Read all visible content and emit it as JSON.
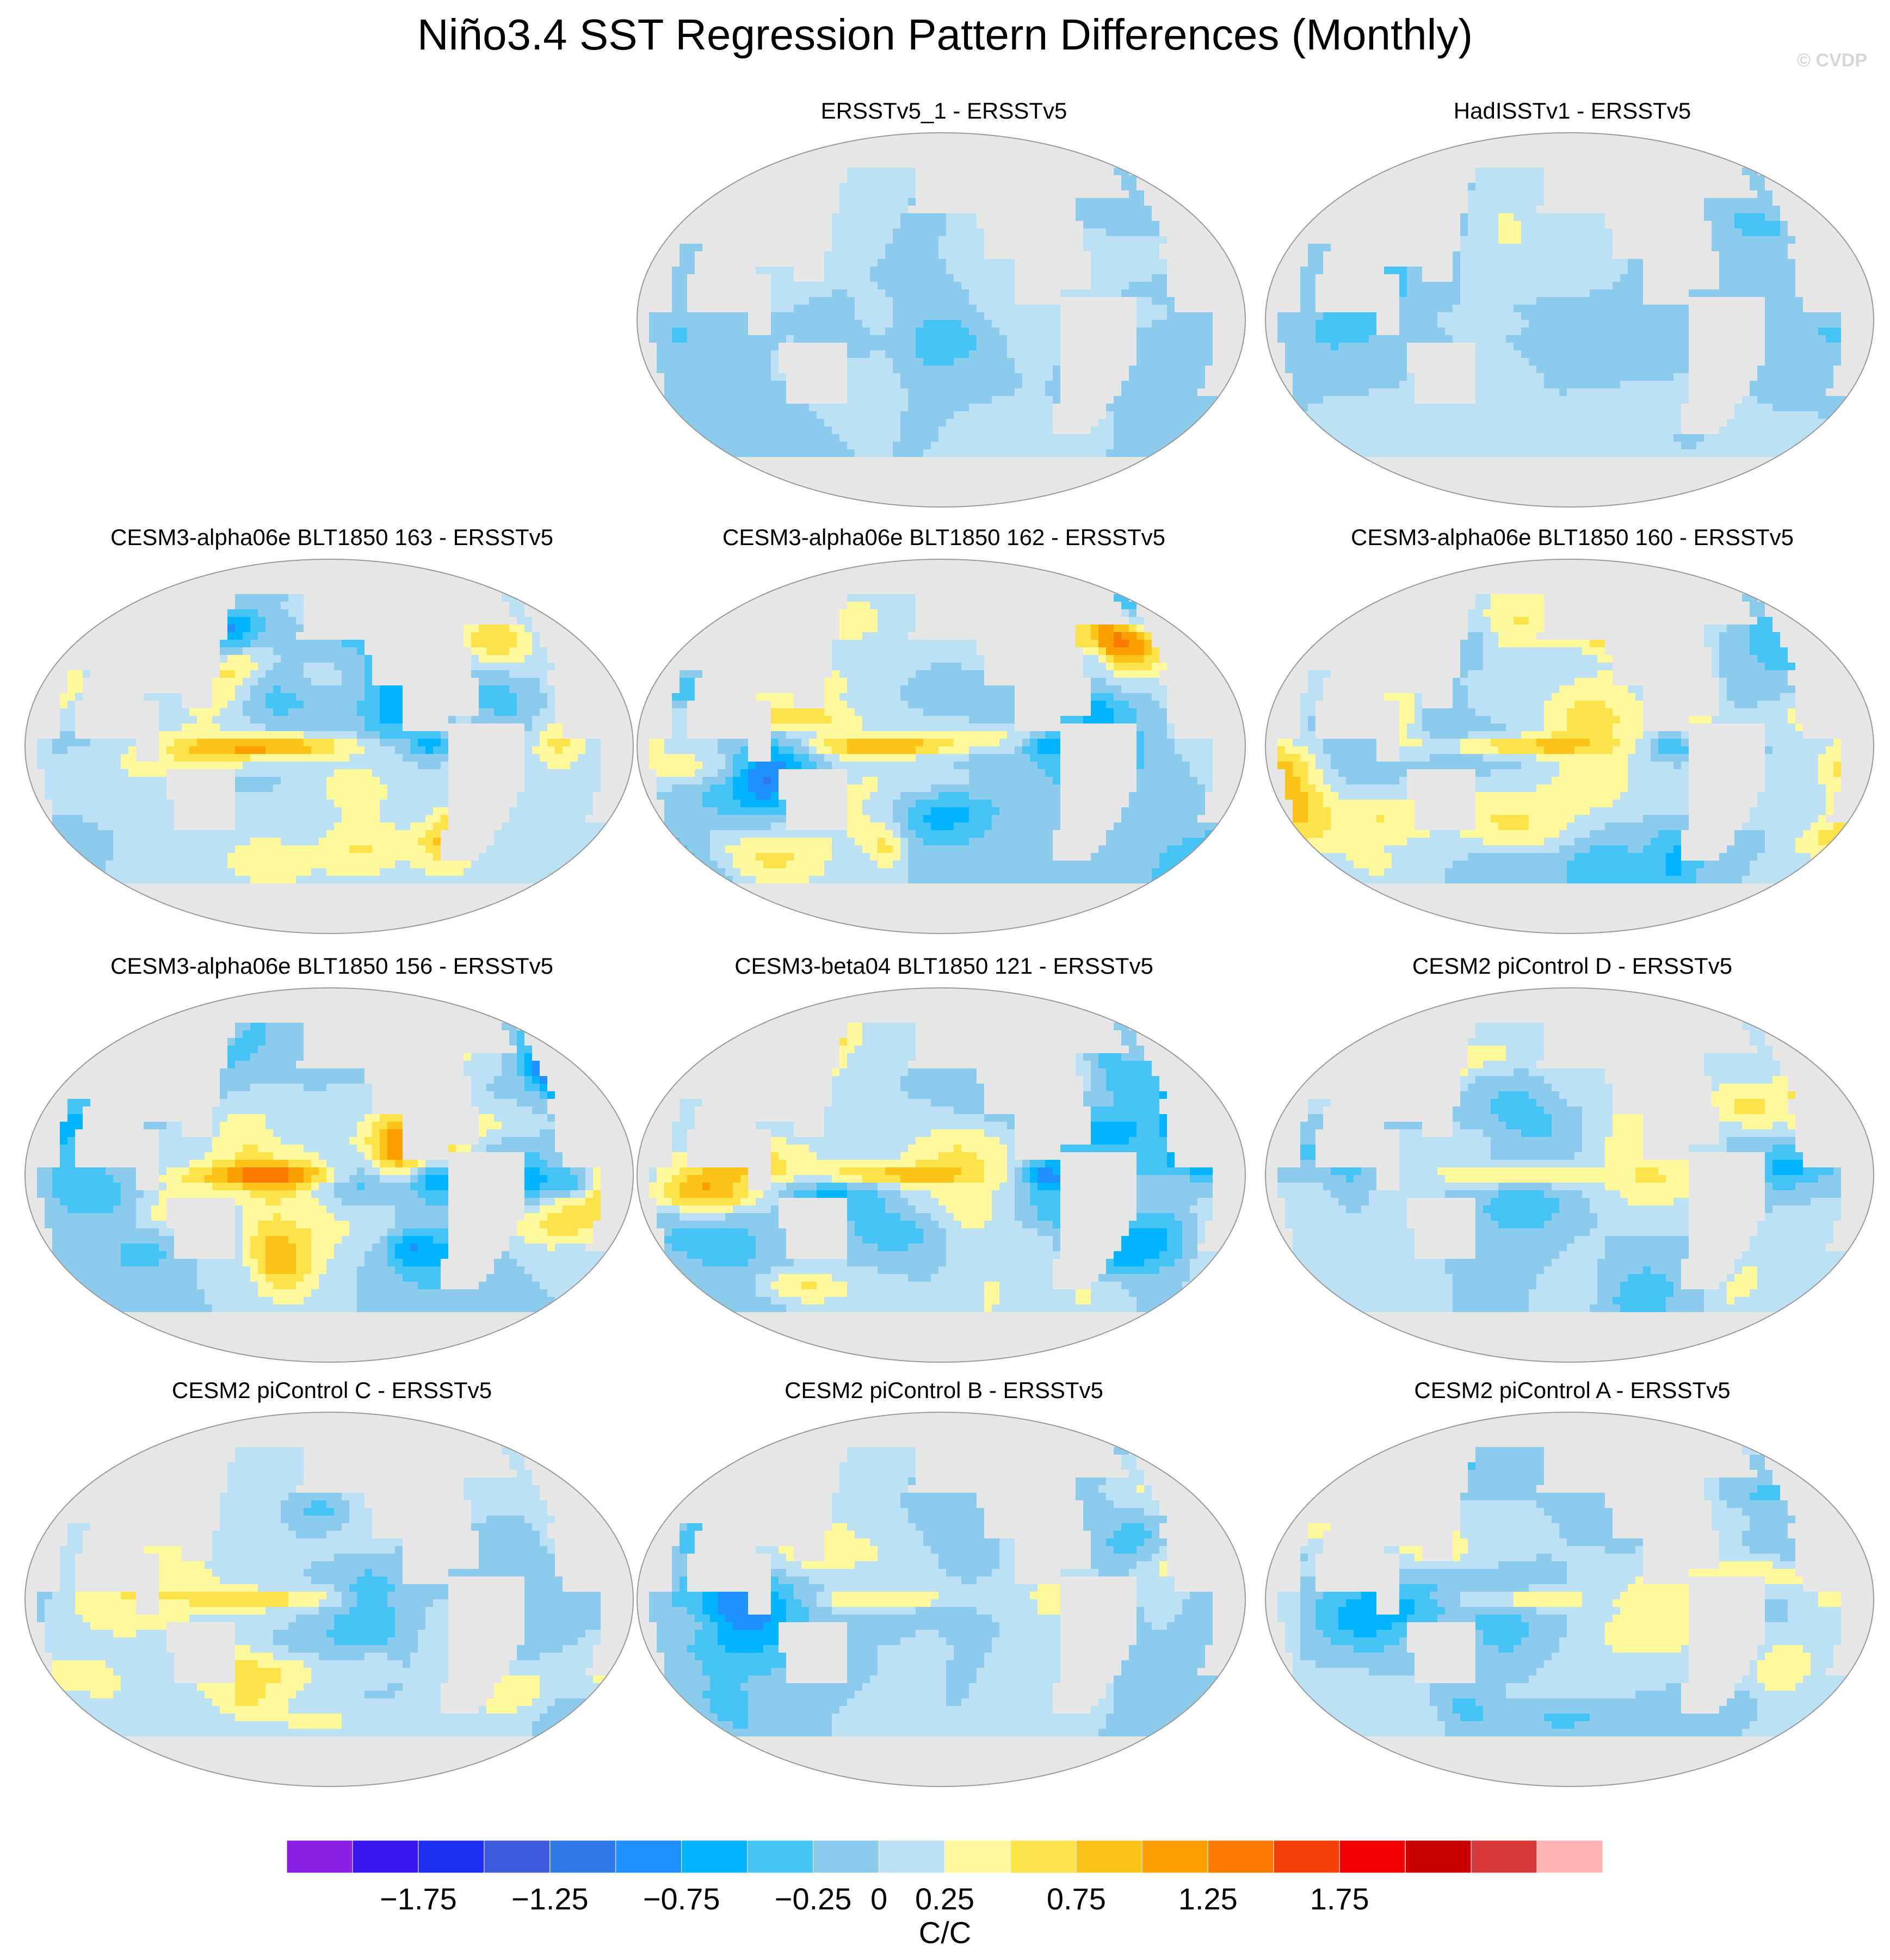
{
  "title": "Niño3.4 SST Regression Pattern Differences (Monthly)",
  "watermark": "© CVDP",
  "chart_data": {
    "type": "heatmap",
    "projection": "Robinson (Pacific-centered)",
    "title": "Niño3.4 SST Regression Pattern Differences (Monthly)",
    "units": "C/C",
    "colorbar": {
      "levels": [
        -2.0,
        -1.75,
        -1.5,
        -1.25,
        -1.0,
        -0.75,
        -0.5,
        -0.25,
        0,
        0.25,
        0.5,
        0.75,
        1.0,
        1.25,
        1.5,
        1.75,
        2.0
      ],
      "tick_labels": [
        "-1.75",
        "-1.25",
        "-0.75",
        "-0.25",
        "0",
        "0.25",
        "0.75",
        "1.25",
        "1.75"
      ],
      "colors": [
        "#8a1fe6",
        "#3b16f0",
        "#1c2ff0",
        "#3e5cdc",
        "#2f7ae8",
        "#1e90ff",
        "#00b4ff",
        "#45c4f5",
        "#8ccbec",
        "#bde1f4",
        "#fff79b",
        "#fde24a",
        "#fcc419",
        "#fba000",
        "#fb7a00",
        "#f53f0a",
        "#f50000",
        "#c90000",
        "#d83a3a",
        "#ffb4b4"
      ],
      "label": "C/C"
    },
    "panels": [
      {
        "title": "ERSSTv5_1 - ERSSTv5",
        "row": 0,
        "col": 1,
        "amplitude": 0.15,
        "tropical_peak": 0.0,
        "style": "obs"
      },
      {
        "title": "HadISSTv1 - ERSSTv5",
        "row": 0,
        "col": 2,
        "amplitude": 0.2,
        "tropical_peak": 0.1,
        "style": "obs"
      },
      {
        "title": "CESM3-alpha06e BLT1850 163 - ERSSTv5",
        "row": 1,
        "col": 0,
        "amplitude": 0.45,
        "tropical_peak": 1.0,
        "style": "model"
      },
      {
        "title": "CESM3-alpha06e BLT1850 162 - ERSSTv5",
        "row": 1,
        "col": 1,
        "amplitude": 0.45,
        "tropical_peak": 1.0,
        "style": "model"
      },
      {
        "title": "CESM3-alpha06e BLT1850 160 - ERSSTv5",
        "row": 1,
        "col": 2,
        "amplitude": 0.45,
        "tropical_peak": 0.9,
        "style": "model"
      },
      {
        "title": "CESM3-alpha06e BLT1850 156 - ERSSTv5",
        "row": 2,
        "col": 0,
        "amplitude": 0.5,
        "tropical_peak": 0.9,
        "style": "model"
      },
      {
        "title": "CESM3-beta04 BLT1850 121 - ERSSTv5",
        "row": 2,
        "col": 1,
        "amplitude": 0.45,
        "tropical_peak": 0.8,
        "style": "model"
      },
      {
        "title": "CESM2 piControl D - ERSSTv5",
        "row": 2,
        "col": 2,
        "amplitude": 0.3,
        "tropical_peak": 0.6,
        "style": "cesm2"
      },
      {
        "title": "CESM2 piControl C - ERSSTv5",
        "row": 3,
        "col": 0,
        "amplitude": 0.3,
        "tropical_peak": 0.6,
        "style": "cesm2"
      },
      {
        "title": "CESM2 piControl B - ERSSTv5",
        "row": 3,
        "col": 1,
        "amplitude": 0.3,
        "tropical_peak": 0.6,
        "style": "cesm2"
      },
      {
        "title": "CESM2 piControl A - ERSSTv5",
        "row": 3,
        "col": 2,
        "amplitude": 0.3,
        "tropical_peak": 0.6,
        "style": "cesm2"
      }
    ]
  }
}
